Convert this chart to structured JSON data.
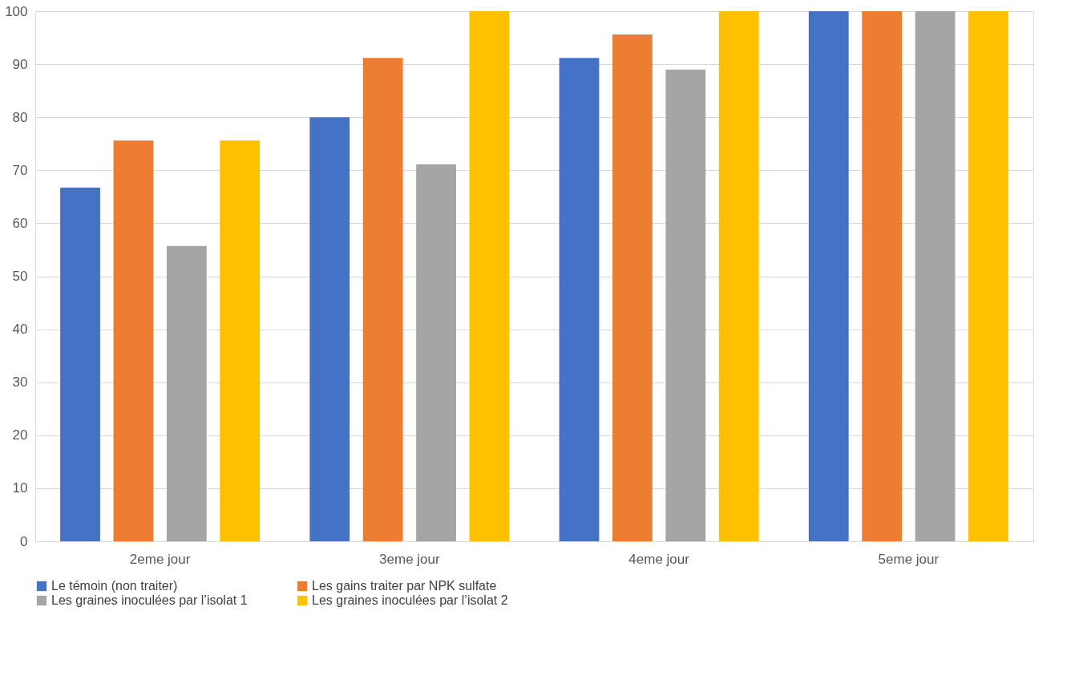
{
  "chart_data": {
    "type": "bar",
    "categories": [
      "2eme jour",
      "3eme jour",
      "4eme jour",
      "5eme jour"
    ],
    "series": [
      {
        "name": "Le témoin (non traiter)",
        "color": "#4472c4",
        "values": [
          66.7,
          80,
          91.2,
          100
        ]
      },
      {
        "name": "Les gains traiter par NPK sulfate",
        "color": "#ed7d31",
        "values": [
          75.6,
          91.2,
          95.6,
          100
        ]
      },
      {
        "name": "Les graines inoculées par l’isolat 1",
        "color": "#a5a5a5",
        "values": [
          55.7,
          71.1,
          89,
          100
        ]
      },
      {
        "name": "Les graines inoculées par l’isolat 2",
        "color": "#ffc000",
        "values": [
          75.6,
          100,
          100,
          100
        ]
      }
    ],
    "ylim": [
      0,
      100
    ],
    "yticks": [
      0,
      10,
      20,
      30,
      40,
      50,
      60,
      70,
      80,
      90,
      100
    ],
    "grid": "y",
    "legend": "bottom"
  }
}
